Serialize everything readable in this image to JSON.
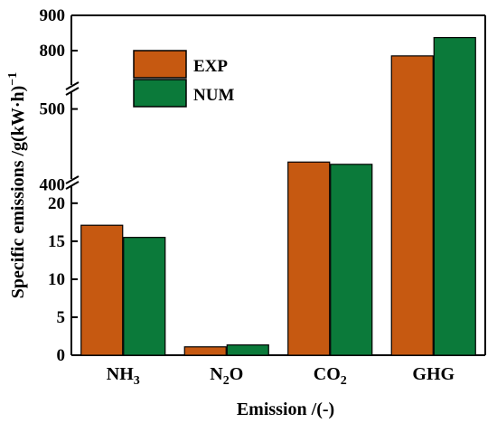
{
  "chart_data": {
    "type": "bar",
    "title": "",
    "xlabel": "Emission /(-)",
    "ylabel": {
      "text": "Specific emissions /g(kW·h)",
      "superscript": "−1"
    },
    "categories": [
      {
        "base": "NH",
        "sub": "3",
        "tail": ""
      },
      {
        "base": "N",
        "sub": "2",
        "tail": "O"
      },
      {
        "base": "CO",
        "sub": "2",
        "tail": ""
      },
      {
        "base": "GHG",
        "sub": "",
        "tail": ""
      }
    ],
    "series": [
      {
        "name": "EXP",
        "color": "#c65911",
        "values": [
          17.1,
          1.1,
          430,
          785
        ]
      },
      {
        "name": "NUM",
        "color": "#0b7a3a",
        "values": [
          15.5,
          1.35,
          427,
          837
        ]
      }
    ],
    "y_axis_segments": [
      {
        "range": [
          0,
          22
        ],
        "ticks": [
          "0",
          "5",
          "10",
          "15",
          "20"
        ]
      },
      {
        "range": [
          360,
          515
        ],
        "ticks": [
          "400",
          "500"
        ]
      },
      {
        "range": [
          700,
          900
        ],
        "ticks": [
          "800",
          "900"
        ]
      }
    ],
    "axis_breaks": true,
    "legend": {
      "placement": "top-left",
      "entries": [
        "EXP",
        "NUM"
      ]
    },
    "grid": false
  }
}
